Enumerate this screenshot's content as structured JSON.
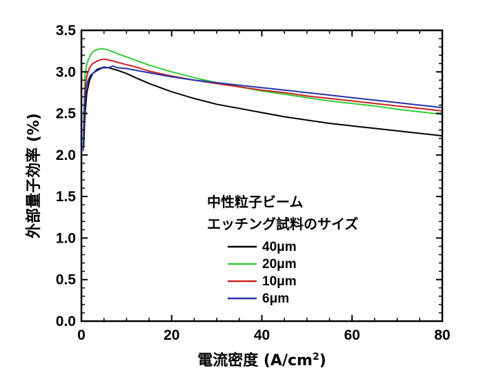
{
  "chart_data": {
    "type": "line",
    "xlabel": "電流密度 (A/cm",
    "xlabel_sup": "2",
    "xlabel_close": ")",
    "ylabel": "外部量子効率 (%)",
    "xlim": [
      0,
      80
    ],
    "ylim": [
      0,
      3.5
    ],
    "x_ticks": [
      "0",
      "20",
      "40",
      "60",
      "80"
    ],
    "y_ticks": [
      "0.0",
      "0.5",
      "1.0",
      "1.5",
      "2.0",
      "2.5",
      "3.0",
      "3.5"
    ],
    "grid": false,
    "legend": {
      "title_lines": [
        "中性粒子ビーム",
        "エッチング試料のサイズ"
      ],
      "placement": "center-right"
    },
    "series": [
      {
        "name": "40μm",
        "color": "#000000",
        "x": [
          0.5,
          0.8,
          1.2,
          1.8,
          2.5,
          3.5,
          4.5,
          6,
          8,
          10,
          12,
          15,
          20,
          25,
          30,
          35,
          40,
          45,
          50,
          55,
          60,
          65,
          70,
          75,
          80
        ],
        "y": [
          2.1,
          2.5,
          2.75,
          2.9,
          2.98,
          3.03,
          3.05,
          3.05,
          3.02,
          2.98,
          2.93,
          2.86,
          2.76,
          2.68,
          2.61,
          2.56,
          2.51,
          2.46,
          2.42,
          2.38,
          2.35,
          2.32,
          2.29,
          2.26,
          2.23
        ]
      },
      {
        "name": "20μm",
        "color": "#33cc33",
        "x": [
          0.5,
          0.8,
          1.2,
          1.8,
          2.5,
          3.5,
          4.5,
          5.5,
          7,
          9,
          12,
          15,
          20,
          25,
          30,
          35,
          40,
          45,
          50,
          55,
          60,
          65,
          70,
          75,
          80
        ],
        "y": [
          2.4,
          2.95,
          3.1,
          3.18,
          3.24,
          3.27,
          3.28,
          3.27,
          3.24,
          3.2,
          3.14,
          3.08,
          3.0,
          2.93,
          2.87,
          2.82,
          2.77,
          2.73,
          2.69,
          2.65,
          2.62,
          2.59,
          2.55,
          2.52,
          2.49
        ]
      },
      {
        "name": "10μm",
        "color": "#cc2222",
        "x": [
          0.5,
          0.8,
          1.2,
          1.8,
          2.5,
          3.5,
          4.5,
          5.5,
          7,
          9,
          12,
          15,
          20,
          25,
          30,
          35,
          40,
          45,
          50,
          55,
          60,
          65,
          70,
          75,
          80
        ],
        "y": [
          2.3,
          2.8,
          2.95,
          3.05,
          3.1,
          3.13,
          3.15,
          3.15,
          3.13,
          3.1,
          3.06,
          3.01,
          2.95,
          2.9,
          2.86,
          2.82,
          2.78,
          2.75,
          2.71,
          2.68,
          2.65,
          2.62,
          2.59,
          2.56,
          2.53
        ]
      },
      {
        "name": " 6μm",
        "color": "#2233aa",
        "x": [
          0.4,
          0.6,
          1,
          1.5,
          2,
          3,
          4,
          5,
          6,
          7,
          8,
          10,
          12,
          15,
          20,
          25,
          30,
          35,
          40,
          45,
          50,
          55,
          60,
          65,
          70,
          75,
          80
        ],
        "y": [
          2.05,
          2.5,
          2.8,
          2.9,
          2.96,
          3.0,
          3.03,
          3.06,
          3.05,
          3.07,
          3.05,
          3.04,
          3.02,
          2.99,
          2.94,
          2.9,
          2.87,
          2.84,
          2.81,
          2.78,
          2.75,
          2.72,
          2.69,
          2.66,
          2.63,
          2.6,
          2.57
        ]
      }
    ]
  }
}
